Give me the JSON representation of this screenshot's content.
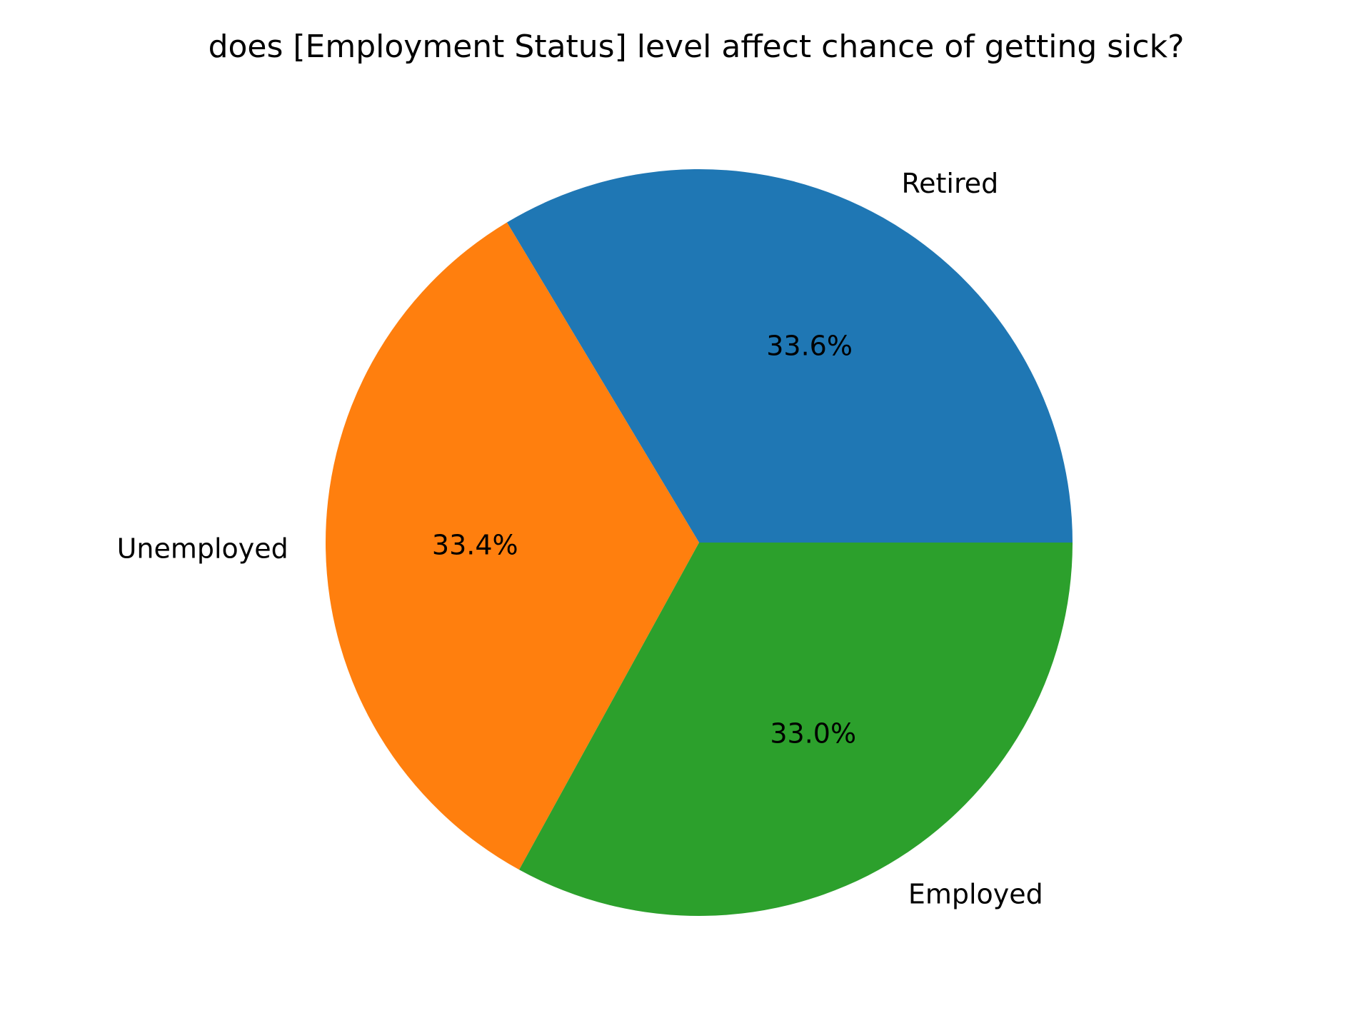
{
  "chart_data": {
    "type": "pie",
    "title": "does [Employment Status] level affect chance of getting sick?",
    "slices": [
      {
        "label": "Retired",
        "percent": 33.6,
        "percent_label": "33.6%",
        "color": "#1f77b4"
      },
      {
        "label": "Unemployed",
        "percent": 33.4,
        "percent_label": "33.4%",
        "color": "#ff7f0e"
      },
      {
        "label": "Employed",
        "percent": 33.0,
        "percent_label": "33.0%",
        "color": "#2ca02c"
      }
    ],
    "start_angle_deg": 0,
    "direction": "counterclockwise"
  }
}
